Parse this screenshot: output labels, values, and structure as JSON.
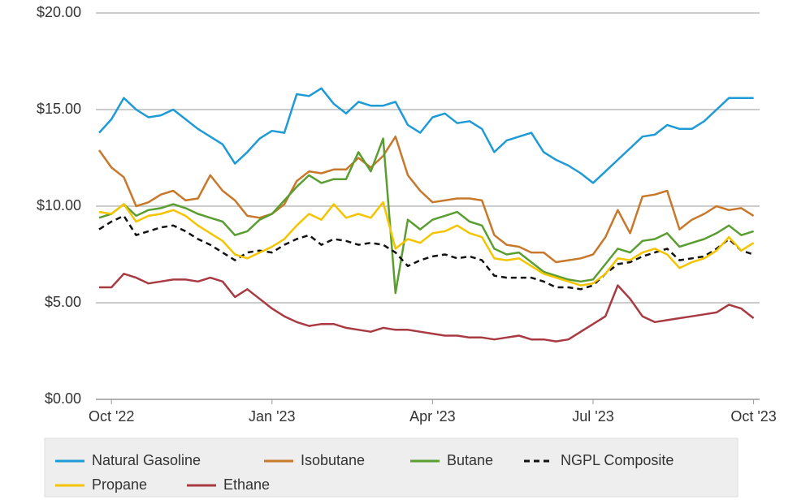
{
  "chart_data": {
    "type": "line",
    "categories": [
      null,
      "Oct '22",
      null,
      null,
      null,
      null,
      null,
      null,
      null,
      null,
      null,
      null,
      null,
      null,
      "Jan '23",
      null,
      null,
      null,
      null,
      null,
      null,
      null,
      null,
      null,
      null,
      null,
      null,
      "Apr '23",
      null,
      null,
      null,
      null,
      null,
      null,
      null,
      null,
      null,
      null,
      null,
      null,
      "Jul '23",
      null,
      null,
      null,
      null,
      null,
      null,
      null,
      null,
      null,
      null,
      null,
      null,
      "Oct '23"
    ],
    "ylim": [
      0,
      20
    ],
    "yticks": [
      {
        "value": 0,
        "label": "$0.00"
      },
      {
        "value": 5,
        "label": "$5.00"
      },
      {
        "value": 10,
        "label": "$10.00"
      },
      {
        "value": 15,
        "label": "$15.00"
      },
      {
        "value": 20,
        "label": "$20.00"
      }
    ],
    "grid": true,
    "series": [
      {
        "name": "Natural Gasoline",
        "color": "#1e9ad6",
        "values": [
          13.8,
          14.5,
          15.6,
          15.0,
          14.6,
          14.7,
          15.0,
          14.5,
          14.0,
          13.6,
          13.2,
          12.2,
          12.8,
          13.5,
          13.9,
          13.8,
          15.8,
          15.7,
          16.1,
          15.3,
          14.8,
          15.4,
          15.2,
          15.2,
          15.4,
          14.2,
          13.8,
          14.6,
          14.8,
          14.3,
          14.4,
          14.0,
          12.8,
          13.4,
          13.6,
          13.8,
          12.8,
          12.4,
          12.1,
          11.7,
          11.2,
          11.8,
          12.4,
          13.0,
          13.6,
          13.7,
          14.2,
          14.0,
          14.0,
          14.4,
          15.0,
          15.6,
          15.6,
          15.6
        ]
      },
      {
        "name": "Isobutane",
        "color": "#c8782a",
        "values": [
          12.9,
          12.0,
          11.5,
          10.0,
          10.2,
          10.6,
          10.8,
          10.3,
          10.4,
          11.6,
          10.8,
          10.3,
          9.5,
          9.4,
          9.6,
          10.1,
          11.3,
          11.8,
          11.7,
          11.9,
          11.9,
          12.5,
          12.0,
          12.6,
          13.6,
          11.6,
          10.8,
          10.2,
          10.3,
          10.4,
          10.4,
          10.3,
          8.5,
          8.0,
          7.9,
          7.6,
          7.6,
          7.1,
          7.2,
          7.3,
          7.5,
          8.4,
          9.8,
          8.6,
          10.5,
          10.6,
          10.8,
          8.8,
          9.3,
          9.6,
          10.0,
          9.8,
          9.9,
          9.5
        ]
      },
      {
        "name": "Butane",
        "color": "#5a9e32",
        "values": [
          9.4,
          9.6,
          10.1,
          9.5,
          9.8,
          9.9,
          10.1,
          9.9,
          9.6,
          9.4,
          9.2,
          8.5,
          8.7,
          9.3,
          9.6,
          10.3,
          11.0,
          11.6,
          11.2,
          11.4,
          11.4,
          12.8,
          11.8,
          13.5,
          5.5,
          9.3,
          8.8,
          9.3,
          9.5,
          9.7,
          9.2,
          9.0,
          7.8,
          7.5,
          7.6,
          7.1,
          6.6,
          6.4,
          6.2,
          6.1,
          6.2,
          7.0,
          7.8,
          7.6,
          8.2,
          8.3,
          8.6,
          7.9,
          8.1,
          8.3,
          8.6,
          9.0,
          8.5,
          8.7
        ]
      },
      {
        "name": "NGPL Composite",
        "color": "#111111",
        "dashed": true,
        "values": [
          8.8,
          9.2,
          9.5,
          8.5,
          8.7,
          8.9,
          9.0,
          8.7,
          8.3,
          8.0,
          7.6,
          7.2,
          7.6,
          7.7,
          7.6,
          8.0,
          8.3,
          8.5,
          8.0,
          8.3,
          8.2,
          8.0,
          8.1,
          8.0,
          7.6,
          6.9,
          7.2,
          7.4,
          7.5,
          7.3,
          7.4,
          7.2,
          6.4,
          6.3,
          6.3,
          6.3,
          6.1,
          5.8,
          5.8,
          5.7,
          5.9,
          6.5,
          7.0,
          7.1,
          7.4,
          7.6,
          7.8,
          7.2,
          7.3,
          7.4,
          7.8,
          8.3,
          7.7,
          7.5
        ]
      },
      {
        "name": "Propane",
        "color": "#f5c400",
        "values": [
          9.7,
          9.6,
          10.1,
          9.2,
          9.5,
          9.6,
          9.8,
          9.5,
          9.0,
          8.6,
          8.2,
          7.5,
          7.3,
          7.6,
          7.9,
          8.3,
          9.0,
          9.6,
          9.3,
          10.1,
          9.4,
          9.6,
          9.4,
          10.2,
          7.8,
          8.3,
          8.1,
          8.6,
          8.7,
          9.0,
          8.6,
          8.4,
          7.3,
          7.2,
          7.3,
          6.9,
          6.5,
          6.3,
          6.1,
          5.9,
          6.0,
          6.5,
          7.3,
          7.2,
          7.6,
          7.8,
          7.5,
          6.8,
          7.1,
          7.3,
          7.7,
          8.4,
          7.7,
          8.1
        ]
      },
      {
        "name": "Ethane",
        "color": "#a83a42",
        "values": [
          5.8,
          5.8,
          6.5,
          6.3,
          6.0,
          6.1,
          6.2,
          6.2,
          6.1,
          6.3,
          6.1,
          5.3,
          5.7,
          5.2,
          4.7,
          4.3,
          4.0,
          3.8,
          3.9,
          3.9,
          3.7,
          3.6,
          3.5,
          3.7,
          3.6,
          3.6,
          3.5,
          3.4,
          3.3,
          3.3,
          3.2,
          3.2,
          3.1,
          3.2,
          3.3,
          3.1,
          3.1,
          3.0,
          3.1,
          3.5,
          3.9,
          4.3,
          5.9,
          5.2,
          4.3,
          4.0,
          4.1,
          4.2,
          4.3,
          4.4,
          4.5,
          4.9,
          4.7,
          4.2
        ]
      }
    ]
  }
}
